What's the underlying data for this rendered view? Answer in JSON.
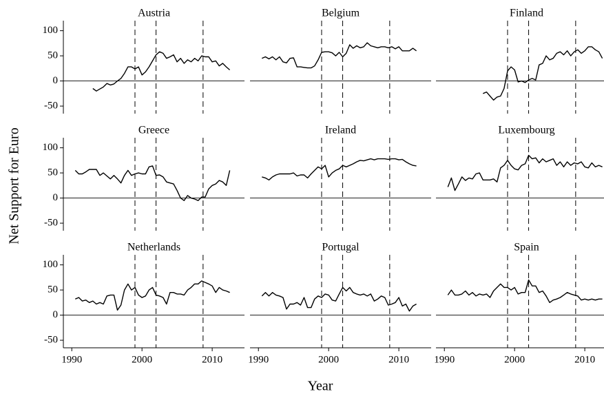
{
  "xlabel": "Year",
  "ylabel": "Net Support for Euro",
  "chart_data": [
    {
      "type": "line",
      "title": "Austria",
      "color": "#000000",
      "xlim": [
        1988.8,
        2014.6
      ],
      "ylim": [
        -65,
        120
      ],
      "xticks": [
        1990,
        2000,
        2010
      ],
      "yticks": [
        -50,
        0,
        50,
        100
      ],
      "hline": 0,
      "vlines": [
        1999,
        2002,
        2008.7
      ],
      "x": [
        1993,
        1993.5,
        1994,
        1994.5,
        1995,
        1995.5,
        1996,
        1996.5,
        1997,
        1997.5,
        1998,
        1998.5,
        1999,
        1999.5,
        2000,
        2000.5,
        2001,
        2001.5,
        2002,
        2002.5,
        2003,
        2003.5,
        2004,
        2004.5,
        2005,
        2005.5,
        2006,
        2006.5,
        2007,
        2007.5,
        2008,
        2008.5,
        2009,
        2009.5,
        2010,
        2010.5,
        2011,
        2011.5,
        2012,
        2012.5
      ],
      "values": [
        -15,
        -20,
        -16,
        -12,
        -5,
        -8,
        -6,
        0,
        5,
        15,
        28,
        28,
        24,
        28,
        12,
        18,
        28,
        40,
        52,
        58,
        55,
        45,
        48,
        52,
        38,
        45,
        35,
        42,
        38,
        45,
        40,
        50,
        48,
        48,
        38,
        40,
        30,
        35,
        28,
        22
      ]
    },
    {
      "type": "line",
      "title": "Belgium",
      "color": "#000000",
      "xlim": [
        1988.8,
        2014.6
      ],
      "ylim": [
        -65,
        120
      ],
      "xticks": [
        1990,
        2000,
        2010
      ],
      "yticks": [
        -50,
        0,
        50,
        100
      ],
      "hline": 0,
      "vlines": [
        1999,
        2002,
        2008.7
      ],
      "x": [
        1990.5,
        1991,
        1991.5,
        1992,
        1992.5,
        1993,
        1993.5,
        1994,
        1994.5,
        1995,
        1995.5,
        1996,
        1996.5,
        1997,
        1997.5,
        1998,
        1998.5,
        1999,
        1999.5,
        2000,
        2000.5,
        2001,
        2001.5,
        2002,
        2002.5,
        2003,
        2003.5,
        2004,
        2004.5,
        2005,
        2005.5,
        2006,
        2006.5,
        2007,
        2007.5,
        2008,
        2008.5,
        2009,
        2009.5,
        2010,
        2010.5,
        2011,
        2011.5,
        2012,
        2012.5
      ],
      "values": [
        45,
        48,
        44,
        48,
        42,
        48,
        38,
        36,
        45,
        46,
        28,
        28,
        27,
        26,
        26,
        30,
        42,
        57,
        58,
        58,
        56,
        50,
        57,
        48,
        55,
        72,
        65,
        70,
        66,
        68,
        76,
        70,
        68,
        66,
        68,
        68,
        66,
        68,
        64,
        68,
        60,
        60,
        60,
        65,
        60
      ]
    },
    {
      "type": "line",
      "title": "Finland",
      "color": "#000000",
      "xlim": [
        1988.8,
        2014.6
      ],
      "ylim": [
        -65,
        120
      ],
      "xticks": [
        1990,
        2000,
        2010
      ],
      "yticks": [
        -50,
        0,
        50,
        100
      ],
      "hline": 0,
      "vlines": [
        1999,
        2002,
        2008.7
      ],
      "x": [
        1995.5,
        1996,
        1996.5,
        1997,
        1997.5,
        1998,
        1998.5,
        1999,
        1999.5,
        2000,
        2000.5,
        2001,
        2001.5,
        2002,
        2002.5,
        2003,
        2003.5,
        2004,
        2004.5,
        2005,
        2005.5,
        2006,
        2006.5,
        2007,
        2007.5,
        2008,
        2008.5,
        2009,
        2009.5,
        2010,
        2010.5,
        2011,
        2011.5,
        2012,
        2012.5
      ],
      "values": [
        -25,
        -22,
        -30,
        -38,
        -32,
        -30,
        -15,
        20,
        28,
        22,
        -2,
        0,
        -3,
        2,
        5,
        2,
        32,
        35,
        50,
        42,
        45,
        55,
        58,
        52,
        60,
        50,
        58,
        62,
        55,
        60,
        68,
        68,
        62,
        58,
        45
      ]
    },
    {
      "type": "line",
      "title": "Greece",
      "color": "#000000",
      "xlim": [
        1988.8,
        2014.6
      ],
      "ylim": [
        -65,
        120
      ],
      "xticks": [
        1990,
        2000,
        2010
      ],
      "yticks": [
        -50,
        0,
        50,
        100
      ],
      "hline": 0,
      "vlines": [
        1999,
        2002,
        2008.7
      ],
      "x": [
        1990.5,
        1991,
        1991.5,
        1992,
        1992.5,
        1993,
        1993.5,
        1994,
        1994.5,
        1995,
        1995.5,
        1996,
        1996.5,
        1997,
        1997.5,
        1998,
        1998.5,
        1999,
        1999.5,
        2000,
        2000.5,
        2001,
        2001.5,
        2002,
        2002.5,
        2003,
        2003.5,
        2004,
        2004.5,
        2005,
        2005.5,
        2006,
        2006.5,
        2007,
        2007.5,
        2008,
        2008.5,
        2009,
        2009.5,
        2010,
        2010.5,
        2011,
        2011.5,
        2012,
        2012.5
      ],
      "values": [
        55,
        48,
        48,
        52,
        57,
        57,
        57,
        45,
        50,
        44,
        38,
        45,
        38,
        30,
        45,
        55,
        45,
        48,
        50,
        48,
        48,
        62,
        64,
        45,
        46,
        42,
        32,
        30,
        28,
        15,
        0,
        -5,
        5,
        0,
        -2,
        -5,
        2,
        2,
        18,
        25,
        28,
        35,
        32,
        25,
        55
      ]
    },
    {
      "type": "line",
      "title": "Ireland",
      "color": "#000000",
      "xlim": [
        1988.8,
        2014.6
      ],
      "ylim": [
        -65,
        120
      ],
      "xticks": [
        1990,
        2000,
        2010
      ],
      "yticks": [
        -50,
        0,
        50,
        100
      ],
      "hline": 0,
      "vlines": [
        1999,
        2002,
        2008.7
      ],
      "x": [
        1990.5,
        1991,
        1991.5,
        1992,
        1992.5,
        1993,
        1993.5,
        1994,
        1994.5,
        1995,
        1995.5,
        1996,
        1996.5,
        1997,
        1997.5,
        1998,
        1998.5,
        1999,
        1999.5,
        2000,
        2000.5,
        2001,
        2001.5,
        2002,
        2002.5,
        2003,
        2003.5,
        2004,
        2004.5,
        2005,
        2005.5,
        2006,
        2006.5,
        2007,
        2007.5,
        2008,
        2008.5,
        2009,
        2009.5,
        2010,
        2010.5,
        2011,
        2011.5,
        2012,
        2012.5
      ],
      "values": [
        42,
        40,
        36,
        42,
        46,
        48,
        48,
        48,
        48,
        50,
        44,
        46,
        46,
        40,
        48,
        55,
        62,
        58,
        65,
        42,
        50,
        55,
        58,
        65,
        62,
        65,
        68,
        72,
        75,
        74,
        76,
        78,
        76,
        78,
        78,
        78,
        77,
        78,
        78,
        76,
        77,
        72,
        68,
        65,
        64
      ]
    },
    {
      "type": "line",
      "title": "Luxembourg",
      "color": "#000000",
      "xlim": [
        1988.8,
        2014.6
      ],
      "ylim": [
        -65,
        120
      ],
      "xticks": [
        1990,
        2000,
        2010
      ],
      "yticks": [
        -50,
        0,
        50,
        100
      ],
      "hline": 0,
      "vlines": [
        1999,
        2002,
        2008.7
      ],
      "x": [
        1990.5,
        1991,
        1991.5,
        1992,
        1992.5,
        1993,
        1993.5,
        1994,
        1994.5,
        1995,
        1995.5,
        1996,
        1996.5,
        1997,
        1997.5,
        1998,
        1998.5,
        1999,
        1999.5,
        2000,
        2000.5,
        2001,
        2001.5,
        2002,
        2002.5,
        2003,
        2003.5,
        2004,
        2004.5,
        2005,
        2005.5,
        2006,
        2006.5,
        2007,
        2007.5,
        2008,
        2008.5,
        2009,
        2009.5,
        2010,
        2010.5,
        2011,
        2011.5,
        2012,
        2012.5
      ],
      "values": [
        22,
        40,
        15,
        28,
        42,
        35,
        40,
        38,
        48,
        50,
        36,
        36,
        36,
        38,
        32,
        60,
        65,
        75,
        65,
        58,
        56,
        65,
        68,
        85,
        78,
        80,
        70,
        78,
        72,
        75,
        78,
        65,
        72,
        62,
        72,
        65,
        70,
        68,
        72,
        62,
        60,
        70,
        62,
        65,
        62
      ]
    },
    {
      "type": "line",
      "title": "Netherlands",
      "color": "#000000",
      "xlim": [
        1988.8,
        2014.6
      ],
      "ylim": [
        -65,
        120
      ],
      "xticks": [
        1990,
        2000,
        2010
      ],
      "yticks": [
        -50,
        0,
        50,
        100
      ],
      "hline": 0,
      "vlines": [
        1999,
        2002,
        2008.7
      ],
      "x": [
        1990.5,
        1991,
        1991.5,
        1992,
        1992.5,
        1993,
        1993.5,
        1994,
        1994.5,
        1995,
        1995.5,
        1996,
        1996.5,
        1997,
        1997.5,
        1998,
        1998.5,
        1999,
        1999.5,
        2000,
        2000.5,
        2001,
        2001.5,
        2002,
        2002.5,
        2003,
        2003.5,
        2004,
        2004.5,
        2005,
        2005.5,
        2006,
        2006.5,
        2007,
        2007.5,
        2008,
        2008.5,
        2009,
        2009.5,
        2010,
        2010.5,
        2011,
        2011.5,
        2012,
        2012.5
      ],
      "values": [
        32,
        35,
        28,
        30,
        25,
        28,
        22,
        25,
        22,
        38,
        40,
        40,
        10,
        20,
        50,
        62,
        50,
        55,
        40,
        35,
        38,
        50,
        55,
        40,
        38,
        35,
        22,
        45,
        45,
        42,
        42,
        40,
        50,
        55,
        62,
        62,
        68,
        65,
        62,
        58,
        45,
        55,
        50,
        48,
        45
      ]
    },
    {
      "type": "line",
      "title": "Portugal",
      "color": "#000000",
      "xlim": [
        1988.8,
        2014.6
      ],
      "ylim": [
        -65,
        120
      ],
      "xticks": [
        1990,
        2000,
        2010
      ],
      "yticks": [
        -50,
        0,
        50,
        100
      ],
      "hline": 0,
      "vlines": [
        1999,
        2002,
        2008.7
      ],
      "x": [
        1990.5,
        1991,
        1991.5,
        1992,
        1992.5,
        1993,
        1993.5,
        1994,
        1994.5,
        1995,
        1995.5,
        1996,
        1996.5,
        1997,
        1997.5,
        1998,
        1998.5,
        1999,
        1999.5,
        2000,
        2000.5,
        2001,
        2001.5,
        2002,
        2002.5,
        2003,
        2003.5,
        2004,
        2004.5,
        2005,
        2005.5,
        2006,
        2006.5,
        2007,
        2007.5,
        2008,
        2008.5,
        2009,
        2009.5,
        2010,
        2010.5,
        2011,
        2011.5,
        2012,
        2012.5
      ],
      "values": [
        38,
        45,
        38,
        45,
        40,
        38,
        35,
        12,
        22,
        22,
        25,
        20,
        35,
        15,
        15,
        32,
        38,
        35,
        42,
        40,
        30,
        28,
        42,
        55,
        48,
        55,
        45,
        42,
        40,
        42,
        38,
        42,
        28,
        32,
        38,
        35,
        20,
        22,
        25,
        35,
        18,
        22,
        8,
        18,
        22
      ]
    },
    {
      "type": "line",
      "title": "Spain",
      "color": "#000000",
      "xlim": [
        1988.8,
        2014.6
      ],
      "ylim": [
        -65,
        120
      ],
      "xticks": [
        1990,
        2000,
        2010
      ],
      "yticks": [
        -50,
        0,
        50,
        100
      ],
      "hline": 0,
      "vlines": [
        1999,
        2002,
        2008.7
      ],
      "x": [
        1990.5,
        1991,
        1991.5,
        1992,
        1992.5,
        1993,
        1993.5,
        1994,
        1994.5,
        1995,
        1995.5,
        1996,
        1996.5,
        1997,
        1997.5,
        1998,
        1998.5,
        1999,
        1999.5,
        2000,
        2000.5,
        2001,
        2001.5,
        2002,
        2002.5,
        2003,
        2003.5,
        2004,
        2004.5,
        2005,
        2005.5,
        2006,
        2006.5,
        2007,
        2007.5,
        2008,
        2008.5,
        2009,
        2009.5,
        2010,
        2010.5,
        2011,
        2011.5,
        2012,
        2012.5
      ],
      "values": [
        40,
        50,
        40,
        40,
        42,
        48,
        40,
        45,
        38,
        42,
        40,
        42,
        35,
        48,
        55,
        62,
        55,
        55,
        50,
        55,
        42,
        45,
        45,
        70,
        58,
        58,
        45,
        48,
        38,
        25,
        30,
        32,
        35,
        40,
        45,
        42,
        40,
        38,
        30,
        32,
        30,
        32,
        30,
        32,
        32
      ]
    }
  ]
}
